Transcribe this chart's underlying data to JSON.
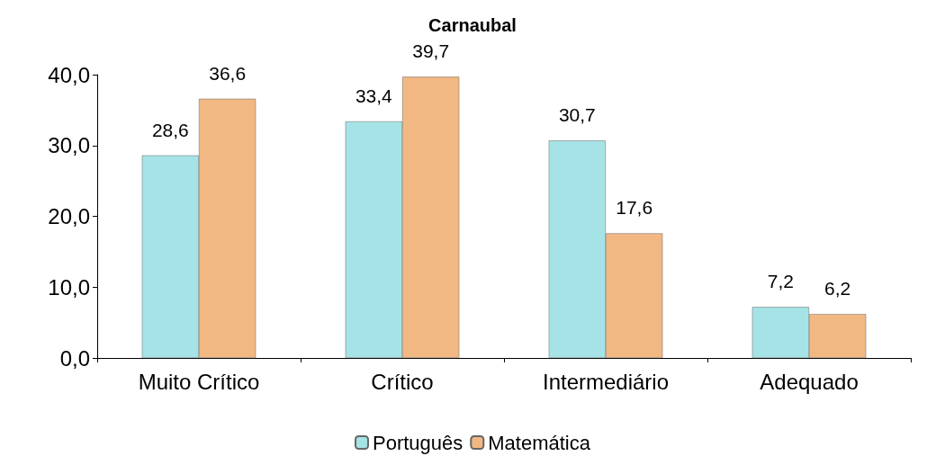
{
  "chart_data": {
    "type": "bar",
    "title": "Carnaubal",
    "categories": [
      "Muito Crítico",
      "Crítico",
      "Intermediário",
      "Adequado"
    ],
    "series": [
      {
        "name": "Português",
        "color": "#a6e3e6",
        "values": [
          28.6,
          33.4,
          30.7,
          7.2
        ],
        "value_labels": [
          "28,6",
          "33,4",
          "30,7",
          "7,2"
        ]
      },
      {
        "name": "Matemática",
        "color": "#f2b883",
        "values": [
          36.6,
          39.7,
          17.6,
          6.2
        ],
        "value_labels": [
          "36,6",
          "39,7",
          "17,6",
          "6,2"
        ]
      }
    ],
    "ylim": [
      0,
      40
    ],
    "yticks": [
      {
        "value": 0,
        "label": "0,0"
      },
      {
        "value": 10,
        "label": "10,0"
      },
      {
        "value": 20,
        "label": "20,0"
      },
      {
        "value": 30,
        "label": "30,0"
      },
      {
        "value": 40,
        "label": "40,0"
      }
    ],
    "grid": false,
    "legend": "bottom"
  }
}
